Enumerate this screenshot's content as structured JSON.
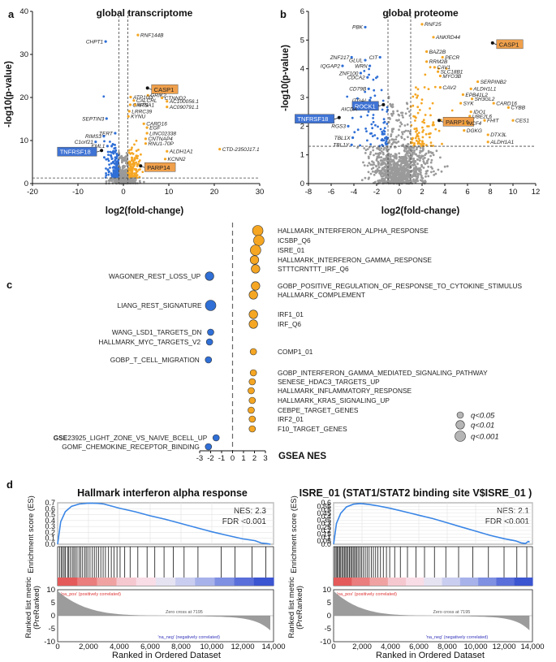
{
  "panels": {
    "a": "a",
    "b": "b",
    "c": "c",
    "d": "d"
  },
  "colors": {
    "up": "#f5a623",
    "down": "#2f6fd6",
    "ns": "#9a9a9a",
    "curve": "#3a86e6",
    "highlight": "#f0a04b",
    "highlight_blue": "#3f73d4"
  },
  "chart_data": [
    {
      "type": "scatter",
      "title": "global transcriptome",
      "xlabel": "log2(fold-change)",
      "ylabel": "-log10(p-value)",
      "xlim": [
        -20,
        30
      ],
      "ylim": [
        0,
        40
      ],
      "xticks": [
        "-20",
        "-10",
        "0",
        "10",
        "20",
        "30"
      ],
      "yticks": [
        "0",
        "10",
        "20",
        "30",
        "40"
      ],
      "thresholds": {
        "fc": [
          -1,
          1
        ],
        "p": 1.3
      },
      "genes": [
        {
          "name": "RNF144B",
          "x": 3.2,
          "y": 34.5,
          "group": "up"
        },
        {
          "name": "CHPT1",
          "x": -3.9,
          "y": 33.0,
          "group": "down"
        },
        {
          "name": "CASP1",
          "x": 5.3,
          "y": 22.2,
          "group": "up",
          "highlight": true
        },
        {
          "name": "GRIK2",
          "x": 5.4,
          "y": 20.5,
          "group": "up"
        },
        {
          "name": "ATP10D",
          "x": 1.6,
          "y": 20.1,
          "group": "up"
        },
        {
          "name": "CTNND2",
          "x": 8.5,
          "y": 19.9,
          "group": "up"
        },
        {
          "name": "CALCRL",
          "x": 2.3,
          "y": 19.3,
          "group": "up"
        },
        {
          "name": "AC100056.1",
          "x": 9.6,
          "y": 19.1,
          "group": "up"
        },
        {
          "name": "CHRNA1",
          "x": 1.5,
          "y": 18.3,
          "group": "up"
        },
        {
          "name": "NTS",
          "x": 2.6,
          "y": 18.3,
          "group": "up"
        },
        {
          "name": "AC090791.1",
          "x": 9.6,
          "y": 17.8,
          "group": "up"
        },
        {
          "name": "LRRC39",
          "x": 1.3,
          "y": 16.8,
          "group": "up"
        },
        {
          "name": "KYNU",
          "x": 1.1,
          "y": 15.6,
          "group": "up"
        },
        {
          "name": "CARD16",
          "x": 4.5,
          "y": 13.9,
          "group": "up"
        },
        {
          "name": "SEPTIN3",
          "x": -3.7,
          "y": 15.1,
          "group": "down"
        },
        {
          "name": "EGF",
          "x": 5.2,
          "y": 13.0,
          "group": "up"
        },
        {
          "name": "TERT",
          "x": -1.8,
          "y": 11.7,
          "group": "down"
        },
        {
          "name": "LINC02338",
          "x": 5.2,
          "y": 11.7,
          "group": "up"
        },
        {
          "name": "RIMS3",
          "x": -4.3,
          "y": 11.0,
          "group": "down"
        },
        {
          "name": "CNTNAP4",
          "x": 4.9,
          "y": 10.4,
          "group": "up"
        },
        {
          "name": "C1orf21",
          "x": -6.1,
          "y": 9.7,
          "group": "down"
        },
        {
          "name": "RNU1-70P",
          "x": 4.9,
          "y": 9.3,
          "group": "up"
        },
        {
          "name": "EML1",
          "x": -3.5,
          "y": 8.7,
          "group": "down"
        },
        {
          "name": "CTD-2350J17.1",
          "x": 21.2,
          "y": 8.0,
          "group": "up"
        },
        {
          "name": "TNFRSF18",
          "x": -4.8,
          "y": 7.7,
          "group": "down",
          "highlight": "blue"
        },
        {
          "name": "ALDH1A1",
          "x": 9.6,
          "y": 7.5,
          "group": "up"
        },
        {
          "name": "KCNN2",
          "x": 9.2,
          "y": 5.7,
          "group": "up"
        },
        {
          "name": "PARP14",
          "x": 3.8,
          "y": 4.1,
          "group": "up",
          "highlight": true
        }
      ]
    },
    {
      "type": "scatter",
      "title": "global proteome",
      "xlabel": "log2(fold-change)",
      "ylabel": "-log10(p-value)",
      "xlim": [
        -8,
        12
      ],
      "ylim": [
        0,
        6
      ],
      "xticks": [
        "-8",
        "-6",
        "-4",
        "-2",
        "0",
        "2",
        "4",
        "6",
        "8",
        "10",
        "12"
      ],
      "yticks": [
        "0",
        "1",
        "2",
        "3",
        "4",
        "5",
        "6"
      ],
      "thresholds": {
        "fc": [
          -1,
          1
        ],
        "p": 1.3
      },
      "genes": [
        {
          "name": "RNF25",
          "x": 2.0,
          "y": 5.55,
          "group": "up"
        },
        {
          "name": "PBK",
          "x": -3.0,
          "y": 5.45,
          "group": "down"
        },
        {
          "name": "ANKRD44",
          "x": 3.0,
          "y": 5.1,
          "group": "up"
        },
        {
          "name": "CASP1",
          "x": 8.2,
          "y": 4.9,
          "group": "up",
          "highlight": true
        },
        {
          "name": "BAZ2B",
          "x": 2.4,
          "y": 4.6,
          "group": "up"
        },
        {
          "name": "ZNF217",
          "x": -4.2,
          "y": 4.4,
          "group": "down"
        },
        {
          "name": "CIT",
          "x": -1.7,
          "y": 4.4,
          "group": "down"
        },
        {
          "name": "PECR",
          "x": 3.8,
          "y": 4.4,
          "group": "up"
        },
        {
          "name": "GLUL",
          "x": -3.0,
          "y": 4.3,
          "group": "down"
        },
        {
          "name": "RRM2B",
          "x": 2.4,
          "y": 4.25,
          "group": "up"
        },
        {
          "name": "IQGAP2",
          "x": -5.0,
          "y": 4.1,
          "group": "down"
        },
        {
          "name": "WRN",
          "x": -2.6,
          "y": 4.1,
          "group": "down"
        },
        {
          "name": "CAV1",
          "x": 3.1,
          "y": 4.05,
          "group": "up"
        },
        {
          "name": "ZNF100",
          "x": -3.4,
          "y": 3.85,
          "group": "down"
        },
        {
          "name": "SLC18B1",
          "x": 3.4,
          "y": 3.9,
          "group": "up"
        },
        {
          "name": "CDCA2",
          "x": -2.8,
          "y": 3.7,
          "group": "down"
        },
        {
          "name": "MYO3B",
          "x": 3.6,
          "y": 3.75,
          "group": "up"
        },
        {
          "name": "SERPINB2",
          "x": 6.9,
          "y": 3.55,
          "group": "up"
        },
        {
          "name": "CAV2",
          "x": 3.6,
          "y": 3.35,
          "group": "up"
        },
        {
          "name": "ALDH1L1",
          "x": 6.3,
          "y": 3.3,
          "group": "up"
        },
        {
          "name": "CD79B",
          "x": -2.7,
          "y": 3.3,
          "group": "down"
        },
        {
          "name": "EPB41L2",
          "x": 5.6,
          "y": 3.1,
          "group": "up"
        },
        {
          "name": "ITGAL",
          "x": -2.6,
          "y": 2.9,
          "group": "down"
        },
        {
          "name": "SH3GL2",
          "x": 6.4,
          "y": 2.95,
          "group": "up"
        },
        {
          "name": "ROCK1",
          "x": -1.4,
          "y": 2.75,
          "group": "down",
          "highlight": "blue"
        },
        {
          "name": "SYK",
          "x": 5.4,
          "y": 2.8,
          "group": "up"
        },
        {
          "name": "CARD16",
          "x": 8.3,
          "y": 2.8,
          "group": "up"
        },
        {
          "name": "AICDA",
          "x": -3.5,
          "y": 2.6,
          "group": "down"
        },
        {
          "name": "CYBB",
          "x": 9.6,
          "y": 2.65,
          "group": "up"
        },
        {
          "name": "TNFRSF18",
          "x": -5.3,
          "y": 2.3,
          "group": "down",
          "highlight": "blue"
        },
        {
          "name": "IDO1",
          "x": 6.3,
          "y": 2.5,
          "group": "up"
        },
        {
          "name": "UBE2L6",
          "x": 6.2,
          "y": 2.35,
          "group": "up"
        },
        {
          "name": "FHIT",
          "x": 7.5,
          "y": 2.2,
          "group": "up"
        },
        {
          "name": "CES1",
          "x": 10.0,
          "y": 2.2,
          "group": "up"
        },
        {
          "name": "PARP14",
          "x": 3.5,
          "y": 2.2,
          "group": "up",
          "highlight": true
        },
        {
          "name": "NCF4",
          "x": 5.8,
          "y": 2.1,
          "group": "up"
        },
        {
          "name": "RGS3",
          "x": -4.5,
          "y": 2.0,
          "group": "down"
        },
        {
          "name": "DGKG",
          "x": 5.7,
          "y": 1.85,
          "group": "up"
        },
        {
          "name": "DTX3L",
          "x": 7.8,
          "y": 1.7,
          "group": "up"
        },
        {
          "name": "TBL1X",
          "x": -4.1,
          "y": 1.6,
          "group": "down"
        },
        {
          "name": "ALDH1A1",
          "x": 7.8,
          "y": 1.45,
          "group": "up"
        },
        {
          "name": "TBL1Y",
          "x": -4.2,
          "y": 1.35,
          "group": "down"
        }
      ]
    },
    {
      "type": "scatter",
      "title": "GSEA",
      "xlabel": "GSEA NES",
      "xlim": [
        -3,
        3
      ],
      "xticks": [
        "-3",
        "-2",
        "-1",
        "0",
        "1",
        "2",
        "3"
      ],
      "legend_position": "bottom-right",
      "legend": [
        {
          "label": "q<0.05",
          "q": "q<0.05"
        },
        {
          "label": "q<0.01",
          "q": "q<0.01"
        },
        {
          "label": "q<0.001",
          "q": "q<0.001"
        }
      ],
      "gene_sets": [
        {
          "name": "HALLMARK_INTERFERON_ALPHA_RESPONSE",
          "nes": 2.3,
          "q": "q<0.001"
        },
        {
          "name": "ICSBP_Q6",
          "nes": 2.4,
          "q": "q<0.001"
        },
        {
          "name": "ISRE_01",
          "nes": 2.1,
          "q": "q<0.001"
        },
        {
          "name": "HALLMARK_INTERFERON_GAMMA_RESPONSE",
          "nes": 2.0,
          "q": "q<0.01"
        },
        {
          "name": "STTTCRNTTT_IRF_Q6",
          "nes": 2.1,
          "q": "q<0.01"
        },
        {
          "name": "WAGONER_REST_LOSS_UP",
          "nes": -2.1,
          "q": "q<0.01"
        },
        {
          "name": "GOBP_POSITIVE_REGULATION_OF_RESPONSE_TO_CYTOKINE_STIMULUS",
          "nes": 2.1,
          "q": "q<0.01"
        },
        {
          "name": "HALLMARK_COMPLEMENT",
          "nes": 1.9,
          "q": "q<0.01"
        },
        {
          "name": "LIANG_REST_SIGNATURE",
          "nes": -2.0,
          "q": "q<0.001"
        },
        {
          "name": "IRF1_01",
          "nes": 1.9,
          "q": "q<0.01"
        },
        {
          "name": "IRF_Q6",
          "nes": 1.9,
          "q": "q<0.01"
        },
        {
          "name": "WANG_LSD1_TARGETS_DN",
          "nes": -2.0,
          "q": "q<0.05"
        },
        {
          "name": "HALLMARK_MYC_TARGETS_V2",
          "nes": -2.1,
          "q": "q<0.05"
        },
        {
          "name": "COMP1_01",
          "nes": 1.9,
          "q": "q<0.05"
        },
        {
          "name": "GOBP_T_CELL_MIGRATION",
          "nes": -2.2,
          "q": "q<0.05"
        },
        {
          "name": "GOBP_INTERFERON_GAMMA_MEDIATED_SIGNALING_PATHWAY",
          "nes": 1.9,
          "q": "q<0.05"
        },
        {
          "name": "SENESE_HDAC3_TARGETS_UP",
          "nes": 1.8,
          "q": "q<0.05"
        },
        {
          "name": "HALLMARK_INFLAMMATORY_RESPONSE",
          "nes": 1.7,
          "q": "q<0.05"
        },
        {
          "name": "HALLMARK_KRAS_SIGNALING_UP",
          "nes": 1.8,
          "q": "q<0.05"
        },
        {
          "name": "CEBPE_TARGET_GENES",
          "nes": 1.7,
          "q": "q<0.05"
        },
        {
          "name": "IRF2_01",
          "nes": 1.8,
          "q": "q<0.05"
        },
        {
          "name": "F10_TARGET_GENES",
          "nes": 1.8,
          "q": "q<0.05"
        },
        {
          "name_prefix": "GSE",
          "name": "23925_LIGHT_ZONE_VS_NAIVE_BCELL_UP",
          "nes": -1.5,
          "q": "q<0.05"
        },
        {
          "name": "GOMF_CHEMOKINE_RECEPTOR_BINDING",
          "nes": -2.2,
          "q": "q<0.05"
        }
      ]
    },
    {
      "type": "line",
      "title": "Hallmark interferon alpha response",
      "nes_text": "NES: 2.3",
      "fdr_text": "FDR <0.001",
      "ylabel": "Enrichment score (ES)",
      "ylabel2_line1": "Ranked list metric",
      "ylabel2_line2": "(PreRanked)",
      "xlabel": "Ranked in Ordered Dataset",
      "xlim": [
        0,
        14000
      ],
      "ylim": [
        0,
        0.7
      ],
      "ylim2": [
        -10,
        10
      ],
      "xticks": [
        "0",
        "2,000",
        "4,000",
        "6,000",
        "8,000",
        "10,000",
        "12,000",
        "14,000"
      ],
      "yticks": [
        "0.0",
        "0.1",
        "0.2",
        "0.3",
        "0.4",
        "0.5",
        "0.6",
        "0.7"
      ],
      "yticks2": [
        "-10",
        "-5",
        "0",
        "5",
        "10"
      ],
      "pos_label": "'na_pos' (positively correlated)",
      "neg_label": "'na_neg' (negatively correlated)",
      "zero_cross": "Zero cross at 7195",
      "es_points": [
        [
          0,
          0
        ],
        [
          200,
          0.38
        ],
        [
          500,
          0.55
        ],
        [
          900,
          0.64
        ],
        [
          1400,
          0.68
        ],
        [
          2000,
          0.695
        ],
        [
          2600,
          0.69
        ],
        [
          3000,
          0.68
        ],
        [
          4000,
          0.61
        ],
        [
          5000,
          0.55
        ],
        [
          6000,
          0.48
        ],
        [
          7000,
          0.42
        ],
        [
          8000,
          0.35
        ],
        [
          9000,
          0.28
        ],
        [
          10000,
          0.21
        ],
        [
          11000,
          0.15
        ],
        [
          12000,
          0.09
        ],
        [
          12800,
          0.06
        ],
        [
          13200,
          0.02
        ],
        [
          13600,
          0.01
        ],
        [
          13800,
          0
        ]
      ],
      "hits": [
        120,
        230,
        320,
        420,
        500,
        640,
        720,
        830,
        950,
        1050,
        1150,
        1260,
        1400,
        1500,
        1620,
        1750,
        1850,
        1960,
        2100,
        2250,
        2380,
        2520,
        2650,
        2800,
        2950,
        3100,
        3300,
        3480,
        3650,
        3850,
        4050,
        4350,
        4700,
        5200,
        5800,
        6300,
        6900,
        7500,
        8200,
        9100,
        10600,
        11500,
        12600,
        13500
      ]
    },
    {
      "type": "line",
      "title": "ISRE_01 (STAT1/STAT2 binding site V$ISRE_01 )",
      "nes_text": "NES: 2.1",
      "fdr_text": "FDR <0.001",
      "ylabel": "Enrichment score (ES)",
      "ylabel2_line1": "Ranked list metric",
      "ylabel2_line2": "(PreRanked)",
      "xlabel": "Ranked in Ordered Dataset",
      "xlim": [
        0,
        14000
      ],
      "ylim": [
        0,
        0.6
      ],
      "ylim2": [
        -10,
        10
      ],
      "xticks": [
        "0",
        "2,000",
        "4,000",
        "6,000",
        "8,000",
        "10,000",
        "12,000",
        "14,000"
      ],
      "yticks": [
        "0.0",
        "0.05",
        "0.1",
        "0.15",
        "0.2",
        "0.25",
        "0.3",
        "0.35",
        "0.4",
        "0.45",
        "0.5",
        "0.55",
        "0.6"
      ],
      "yticks2": [
        "-10",
        "-5",
        "0",
        "5",
        "10"
      ],
      "pos_label": "'na_pos' (positively correlated)",
      "neg_label": "'na_neg' (negatively correlated)",
      "zero_cross": "Zero cross at 7195",
      "es_points": [
        [
          0,
          0
        ],
        [
          200,
          0.3
        ],
        [
          500,
          0.45
        ],
        [
          900,
          0.54
        ],
        [
          1400,
          0.58
        ],
        [
          1900,
          0.59
        ],
        [
          2500,
          0.575
        ],
        [
          3000,
          0.56
        ],
        [
          4000,
          0.52
        ],
        [
          5000,
          0.47
        ],
        [
          6000,
          0.42
        ],
        [
          7000,
          0.37
        ],
        [
          8000,
          0.31
        ],
        [
          9000,
          0.25
        ],
        [
          10000,
          0.19
        ],
        [
          11000,
          0.13
        ],
        [
          12000,
          0.08
        ],
        [
          12800,
          0.05
        ],
        [
          13200,
          0.02
        ],
        [
          13500,
          0.01
        ],
        [
          13700,
          0.04
        ],
        [
          13800,
          0.03
        ]
      ],
      "hits": [
        100,
        180,
        260,
        340,
        420,
        500,
        590,
        680,
        760,
        850,
        930,
        1020,
        1110,
        1200,
        1290,
        1380,
        1470,
        1560,
        1650,
        1760,
        1870,
        1980,
        2100,
        2230,
        2360,
        2500,
        2650,
        2800,
        2960,
        3120,
        3300,
        3500,
        3720,
        3950,
        4300,
        4700,
        5200,
        5800,
        6400,
        7100,
        7900,
        8800,
        9800,
        10900,
        12000,
        12900,
        13600
      ]
    }
  ]
}
